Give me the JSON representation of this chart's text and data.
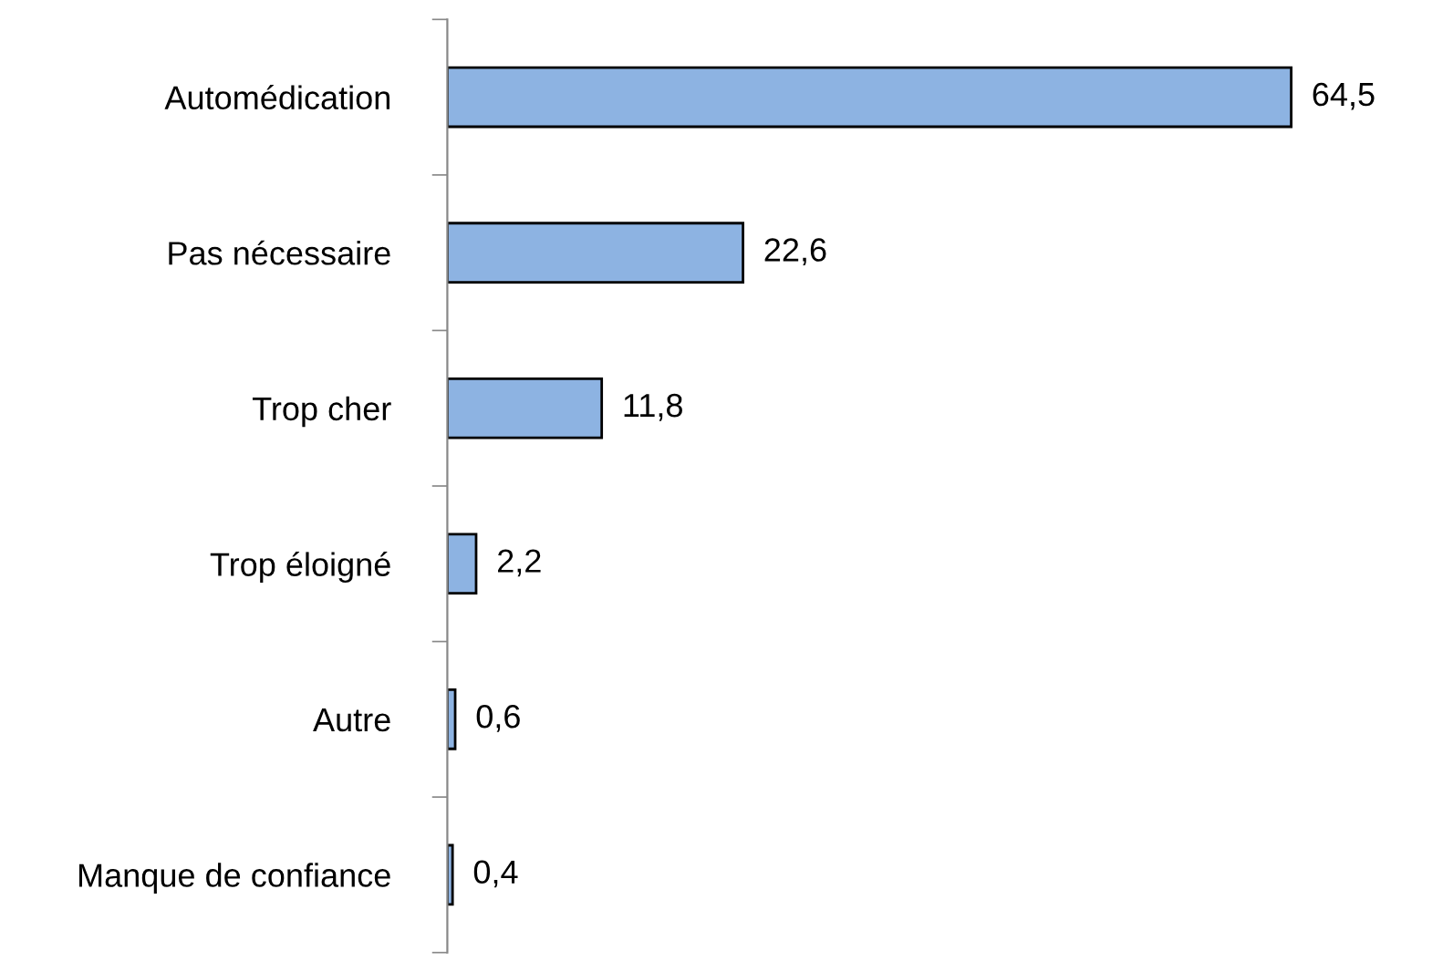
{
  "chart_data": {
    "type": "bar",
    "orientation": "horizontal",
    "categories": [
      "Automédication",
      "Pas nécessaire",
      "Trop cher",
      "Trop éloigné",
      "Autre",
      "Manque de confiance"
    ],
    "values": [
      64.5,
      22.6,
      11.8,
      2.2,
      0.6,
      0.4
    ],
    "value_labels": [
      "64,5",
      "22,6",
      "11,8",
      "2,2",
      "0,6",
      "0,4"
    ],
    "color": "#8db3e2",
    "grid": false,
    "legend": false,
    "tick_labels": "y"
  }
}
